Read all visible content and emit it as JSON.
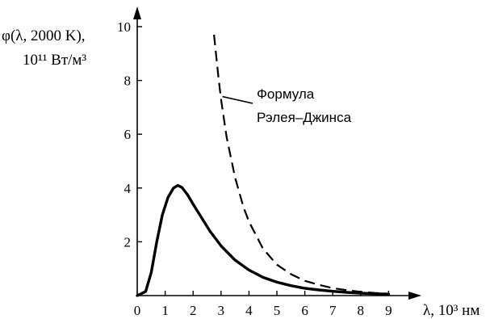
{
  "chart_data": {
    "type": "line",
    "ylabel_line1": "φ(λ, 2000 K),",
    "ylabel_line2": "10¹¹ Вт/м³",
    "xlabel": "λ, 10³ нм",
    "xlim": [
      0,
      9.5
    ],
    "ylim": [
      0,
      10
    ],
    "x_ticks": [
      "0",
      "1",
      "2",
      "3",
      "4",
      "5",
      "6",
      "7",
      "8",
      "9"
    ],
    "y_ticks": [
      "2",
      "4",
      "6",
      "8",
      "10"
    ],
    "grid": false,
    "series": [
      {
        "style": "solid",
        "x": [
          0,
          0.3,
          0.5,
          0.7,
          0.9,
          1.1,
          1.3,
          1.45,
          1.6,
          1.8,
          2.0,
          2.3,
          2.6,
          3.0,
          3.5,
          4.0,
          4.5,
          5.0,
          5.5,
          6.0,
          6.5,
          7.0,
          7.5,
          8.0,
          8.5,
          9.0
        ],
        "y": [
          0,
          0.15,
          0.85,
          2.0,
          3.0,
          3.65,
          4.0,
          4.1,
          4.02,
          3.75,
          3.4,
          2.9,
          2.4,
          1.85,
          1.32,
          0.95,
          0.68,
          0.5,
          0.37,
          0.27,
          0.21,
          0.16,
          0.12,
          0.09,
          0.07,
          0.05
        ]
      },
      {
        "name": "Формула Рэлея–Джинса",
        "style": "dashed",
        "x": [
          2.75,
          2.9,
          3.0,
          3.2,
          3.5,
          3.8,
          4.0,
          4.5,
          5.0,
          5.5,
          6.0,
          6.5,
          7.0,
          7.5,
          8.0,
          8.5,
          9.0
        ],
        "y": [
          9.7,
          8.2,
          7.3,
          5.9,
          4.4,
          3.3,
          2.75,
          1.75,
          1.15,
          0.8,
          0.55,
          0.4,
          0.28,
          0.2,
          0.14,
          0.1,
          0.07
        ]
      }
    ],
    "annotation": {
      "line1": "Формула",
      "line2": "Рэлея–Джинса",
      "points_to_series": 1,
      "x": 3.05,
      "y": 7.4
    }
  }
}
